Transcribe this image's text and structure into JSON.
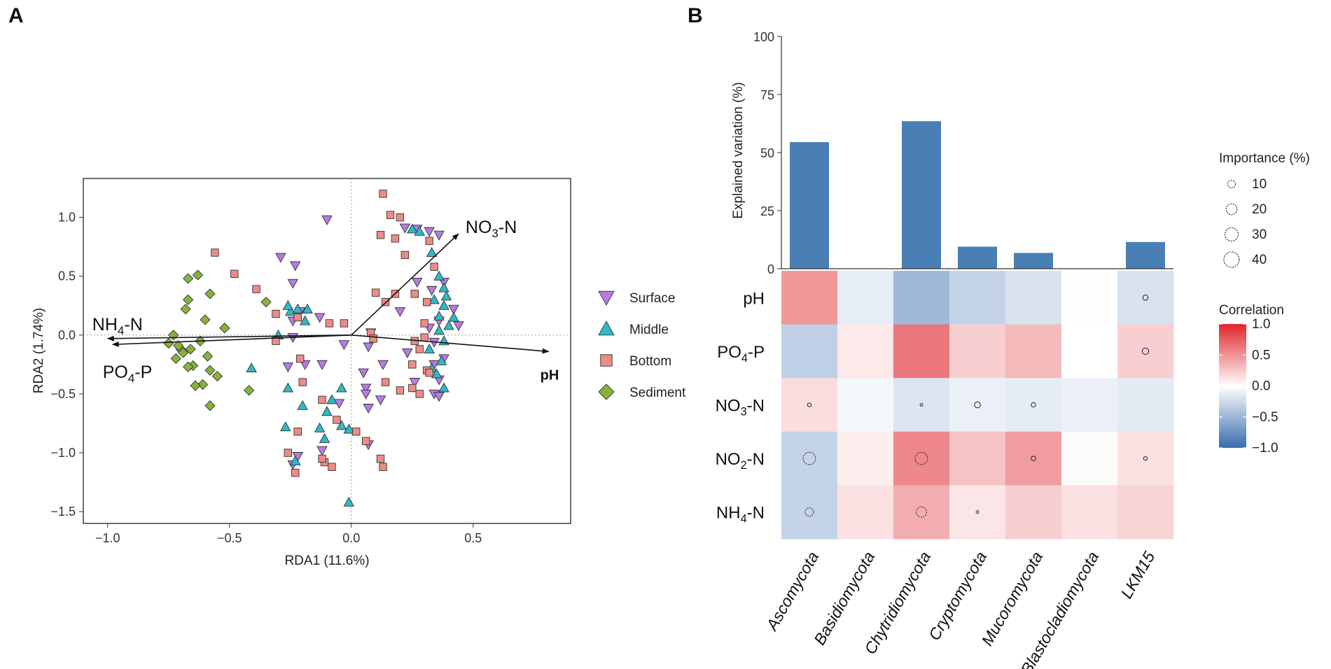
{
  "panels": {
    "a_letter": "A",
    "b_letter": "B"
  },
  "colors": {
    "surface": "#b57be3",
    "middle": "#2fb9c7",
    "bottom": "#ee8b86",
    "sediment": "#86b33a",
    "bar": "#4a7fb5",
    "neg": "#3a6cb0",
    "pos": "#e0262b"
  },
  "chart_data": [
    {
      "type": "scatter",
      "title": "",
      "xlabel": "RDA1 (11.6%)",
      "ylabel": "RDA2 (1.74%)",
      "xlim": [
        -1.1,
        0.9
      ],
      "ylim": [
        -1.6,
        1.33
      ],
      "xticks": [
        -1.0,
        -0.5,
        0.0,
        0.5
      ],
      "xtick_labels": [
        "−1.0",
        "−0.5",
        "0.0",
        "0.5"
      ],
      "yticks": [
        -1.5,
        -1.0,
        -0.5,
        0.0,
        0.5,
        1.0
      ],
      "ytick_labels": [
        "−1.5",
        "−1.0",
        "−0.5",
        "0.0",
        "0.5",
        "1.0"
      ],
      "legend": {
        "position": "right",
        "entries": [
          "Surface",
          "Middle",
          "Bottom",
          "Sediment"
        ]
      },
      "vectors": [
        {
          "label": "NO3-N",
          "main": "NO",
          "sub": "3",
          "rest": "-N",
          "x": 0.44,
          "y": 0.86
        },
        {
          "label": "NH4-N",
          "main": "NH",
          "sub": "4",
          "rest": "-N",
          "x": -1.0,
          "y": -0.03
        },
        {
          "label": "PO4-P",
          "main": "PO",
          "sub": "4",
          "rest": "-P",
          "x": -0.98,
          "y": -0.08
        },
        {
          "label": "pH",
          "main": "pH",
          "sub": "",
          "rest": "",
          "x": 0.81,
          "y": -0.14
        }
      ],
      "series": [
        {
          "name": "Surface",
          "marker": "triangle-down",
          "points": [
            [
              -0.1,
              0.98
            ],
            [
              -0.29,
              0.66
            ],
            [
              -0.23,
              0.59
            ],
            [
              -0.24,
              0.44
            ],
            [
              -0.21,
              0.2
            ],
            [
              -0.24,
              0.12
            ],
            [
              -0.13,
              0.15
            ],
            [
              -0.24,
              -0.02
            ],
            [
              -0.26,
              -0.27
            ],
            [
              -0.19,
              -0.25
            ],
            [
              -0.12,
              -0.25
            ],
            [
              -0.03,
              -0.08
            ],
            [
              0.07,
              -0.1
            ],
            [
              0.13,
              -0.25
            ],
            [
              0.05,
              -0.32
            ],
            [
              0.06,
              -0.45
            ],
            [
              0.06,
              -0.5
            ],
            [
              -0.05,
              -0.58
            ],
            [
              0.07,
              -0.62
            ],
            [
              0.12,
              -0.55
            ],
            [
              0.07,
              -0.93
            ],
            [
              -0.12,
              -0.98
            ],
            [
              -0.22,
              -1.03
            ],
            [
              -0.24,
              -1.1
            ],
            [
              0.22,
              0.91
            ],
            [
              0.27,
              0.9
            ],
            [
              0.32,
              0.88
            ],
            [
              0.36,
              0.85
            ],
            [
              0.38,
              0.45
            ],
            [
              0.33,
              0.38
            ],
            [
              0.42,
              0.22
            ],
            [
              0.36,
              0.12
            ],
            [
              0.44,
              0.08
            ],
            [
              0.32,
              0.06
            ],
            [
              0.34,
              -0.06
            ],
            [
              0.38,
              -0.2
            ],
            [
              0.34,
              -0.25
            ],
            [
              0.36,
              -0.38
            ],
            [
              0.34,
              -0.5
            ],
            [
              0.36,
              -0.52
            ],
            [
              0.26,
              -0.4
            ],
            [
              0.23,
              -0.15
            ],
            [
              0.08,
              0.02
            ],
            [
              0.2,
              0.2
            ],
            [
              0.27,
              0.45
            ]
          ]
        },
        {
          "name": "Middle",
          "marker": "triangle-up",
          "points": [
            [
              -0.25,
              0.2
            ],
            [
              -0.22,
              0.22
            ],
            [
              -0.18,
              0.22
            ],
            [
              -0.19,
              0.12
            ],
            [
              -0.3,
              0.0
            ],
            [
              -0.41,
              -0.28
            ],
            [
              -0.26,
              -0.45
            ],
            [
              -0.08,
              -0.55
            ],
            [
              -0.04,
              -0.45
            ],
            [
              -0.1,
              -0.65
            ],
            [
              -0.13,
              -0.79
            ],
            [
              -0.04,
              -0.77
            ],
            [
              -0.11,
              -0.88
            ],
            [
              -0.27,
              -0.78
            ],
            [
              -0.2,
              -0.6
            ],
            [
              -0.23,
              -1.07
            ],
            [
              -0.01,
              -1.42
            ],
            [
              -0.01,
              -0.8
            ],
            [
              0.25,
              0.9
            ],
            [
              0.28,
              0.88
            ],
            [
              0.33,
              0.7
            ],
            [
              0.36,
              0.5
            ],
            [
              0.38,
              0.4
            ],
            [
              0.34,
              0.3
            ],
            [
              0.39,
              0.33
            ],
            [
              0.38,
              0.25
            ],
            [
              0.36,
              0.16
            ],
            [
              0.42,
              0.15
            ],
            [
              0.4,
              0.08
            ],
            [
              0.36,
              0.04
            ],
            [
              0.38,
              -0.05
            ],
            [
              0.32,
              -0.12
            ],
            [
              0.37,
              -0.22
            ],
            [
              0.33,
              -0.28
            ],
            [
              0.35,
              -0.33
            ],
            [
              0.38,
              -0.45
            ],
            [
              -0.26,
              0.25
            ]
          ]
        },
        {
          "name": "Bottom",
          "marker": "square",
          "points": [
            [
              -0.56,
              0.7
            ],
            [
              -0.48,
              0.52
            ],
            [
              -0.39,
              0.39
            ],
            [
              -0.31,
              0.18
            ],
            [
              -0.31,
              -0.05
            ],
            [
              -0.22,
              0.15
            ],
            [
              -0.21,
              -0.2
            ],
            [
              -0.2,
              -0.4
            ],
            [
              -0.12,
              -0.55
            ],
            [
              -0.09,
              0.1
            ],
            [
              -0.03,
              0.1
            ],
            [
              -0.06,
              -0.72
            ],
            [
              -0.11,
              -1.08
            ],
            [
              -0.22,
              -0.82
            ],
            [
              -0.26,
              -1.0
            ],
            [
              -0.12,
              -1.05
            ],
            [
              -0.08,
              -1.12
            ],
            [
              -0.23,
              -1.17
            ],
            [
              0.02,
              -0.82
            ],
            [
              0.12,
              -1.05
            ],
            [
              0.13,
              -1.12
            ],
            [
              0.06,
              -0.9
            ],
            [
              0.08,
              0.02
            ],
            [
              0.1,
              0.36
            ],
            [
              0.14,
              0.28
            ],
            [
              0.18,
              0.35
            ],
            [
              0.13,
              1.2
            ],
            [
              0.16,
              1.02
            ],
            [
              0.2,
              1.0
            ],
            [
              0.12,
              0.85
            ],
            [
              0.18,
              0.82
            ],
            [
              0.22,
              0.68
            ],
            [
              0.32,
              0.8
            ],
            [
              0.34,
              0.58
            ],
            [
              0.26,
              0.35
            ],
            [
              0.31,
              0.28
            ],
            [
              0.3,
              0.1
            ],
            [
              0.26,
              -0.05
            ],
            [
              0.28,
              -0.12
            ],
            [
              0.25,
              -0.25
            ],
            [
              0.31,
              -0.3
            ],
            [
              0.25,
              -0.45
            ],
            [
              0.2,
              -0.47
            ],
            [
              0.14,
              -0.4
            ],
            [
              0.09,
              -0.03
            ],
            [
              0.3,
              -0.02
            ],
            [
              0.32,
              -0.32
            ],
            [
              0.28,
              -0.5
            ]
          ]
        },
        {
          "name": "Sediment",
          "marker": "diamond",
          "points": [
            [
              -0.67,
              0.48
            ],
            [
              -0.63,
              0.51
            ],
            [
              -0.58,
              0.35
            ],
            [
              -0.67,
              0.3
            ],
            [
              -0.68,
              0.22
            ],
            [
              -0.6,
              0.13
            ],
            [
              -0.52,
              0.06
            ],
            [
              -0.73,
              0.0
            ],
            [
              -0.75,
              -0.07
            ],
            [
              -0.7,
              -0.12
            ],
            [
              -0.66,
              -0.12
            ],
            [
              -0.62,
              -0.05
            ],
            [
              -0.59,
              -0.18
            ],
            [
              -0.65,
              -0.26
            ],
            [
              -0.72,
              -0.2
            ],
            [
              -0.67,
              -0.27
            ],
            [
              -0.58,
              -0.3
            ],
            [
              -0.55,
              -0.35
            ],
            [
              -0.61,
              -0.42
            ],
            [
              -0.64,
              -0.43
            ],
            [
              -0.58,
              -0.6
            ],
            [
              -0.42,
              -0.47
            ],
            [
              -0.35,
              0.28
            ],
            [
              -0.69,
              -0.15
            ],
            [
              -0.71,
              -0.09
            ]
          ]
        }
      ]
    },
    {
      "type": "bar",
      "title": "",
      "ylabel": "Explained variation (%)",
      "ylim": [
        0,
        100
      ],
      "yticks": [
        0,
        25,
        50,
        75,
        100
      ],
      "categories": [
        "Ascomycota",
        "Basidiomycota",
        "Chytridiomycota",
        "Cryptomycota",
        "Mucoromycota",
        "Blastocladiomycota",
        "LKM15"
      ],
      "values": [
        54.5,
        0,
        63.5,
        9.5,
        6.8,
        0,
        11.5
      ]
    },
    {
      "type": "heatmap",
      "rows": [
        "pH",
        "PO4-P",
        "NO3-N",
        "NO2-N",
        "NH4-N"
      ],
      "row_labels": [
        {
          "main": "pH",
          "sub": "",
          "rest": ""
        },
        {
          "main": "PO",
          "sub": "4",
          "rest": "-P"
        },
        {
          "main": "NO",
          "sub": "3",
          "rest": "-N"
        },
        {
          "main": "NO",
          "sub": "2",
          "rest": "-N"
        },
        {
          "main": "NH",
          "sub": "4",
          "rest": "-N"
        }
      ],
      "columns": [
        "Ascomycota",
        "Basidiomycota",
        "Chytridiomycota",
        "Cryptomycota",
        "Mucoromycota",
        "Blastocladiomycota",
        "LKM15"
      ],
      "values": [
        [
          0.48,
          -0.12,
          -0.48,
          -0.3,
          -0.2,
          0.01,
          -0.2
        ],
        [
          -0.32,
          0.1,
          0.62,
          0.22,
          0.32,
          0.0,
          0.22
        ],
        [
          0.15,
          -0.05,
          -0.18,
          -0.1,
          -0.13,
          -0.1,
          -0.14
        ],
        [
          -0.3,
          0.08,
          0.55,
          0.28,
          0.45,
          0.02,
          0.14
        ],
        [
          -0.3,
          0.14,
          0.38,
          0.12,
          0.22,
          0.14,
          0.2
        ]
      ],
      "importance": [
        [
          0,
          0,
          0,
          0,
          0,
          0,
          4
        ],
        [
          0,
          0,
          0,
          0,
          0,
          0,
          6
        ],
        [
          2,
          0,
          1,
          5,
          3,
          0,
          0
        ],
        [
          22,
          0,
          22,
          0,
          3,
          0,
          2
        ],
        [
          10,
          0,
          15,
          1,
          0,
          0,
          0
        ]
      ],
      "importance_legend": {
        "title": "Importance (%)",
        "levels": [
          10,
          20,
          30,
          40
        ],
        "labels": [
          "10",
          "20",
          "30",
          "40"
        ]
      },
      "color_legend": {
        "title": "Correlation",
        "range": [
          -1.0,
          1.0
        ],
        "ticks": [
          1.0,
          0.5,
          0.0,
          -0.5,
          -1.0
        ],
        "labels": [
          "1.0",
          "0.5",
          "0.0",
          "−0.5",
          "−1.0"
        ]
      }
    }
  ]
}
